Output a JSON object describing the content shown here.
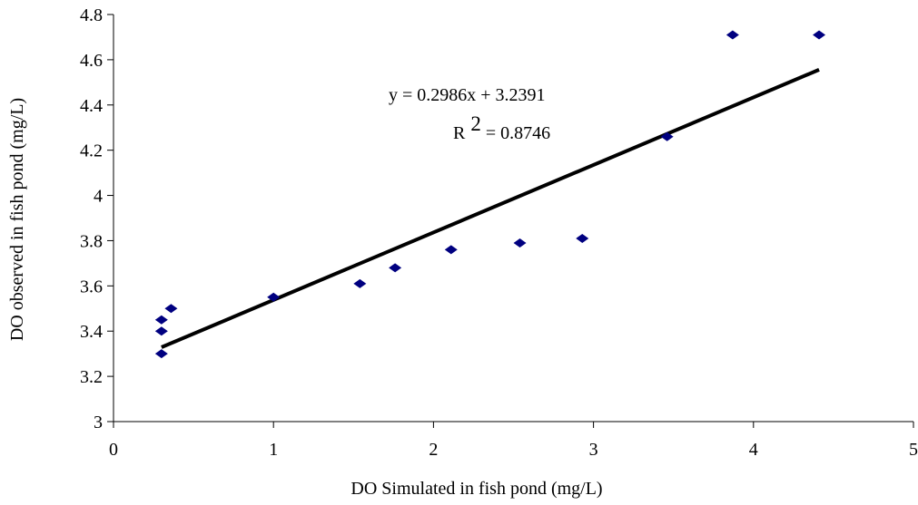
{
  "chart_data": {
    "type": "scatter",
    "xlabel": "DO Simulated in fish pond (mg/L)",
    "ylabel": "DO observed in fish pond (mg/L)",
    "xlim": [
      0,
      5
    ],
    "ylim": [
      3,
      4.8
    ],
    "x_ticks": [
      "0",
      "1",
      "2",
      "3",
      "4",
      "5"
    ],
    "y_ticks": [
      "3",
      "3.2",
      "3.4",
      "3.6",
      "3.8",
      "4",
      "4.2",
      "4.4",
      "4.6",
      "4.8"
    ],
    "grid": false,
    "marker_color": "#000080",
    "trendline_color": "#000000",
    "points": [
      {
        "x": 0.3,
        "y": 3.3
      },
      {
        "x": 0.3,
        "y": 3.4
      },
      {
        "x": 0.3,
        "y": 3.45
      },
      {
        "x": 0.36,
        "y": 3.5
      },
      {
        "x": 1.0,
        "y": 3.55
      },
      {
        "x": 1.54,
        "y": 3.61
      },
      {
        "x": 1.76,
        "y": 3.68
      },
      {
        "x": 2.11,
        "y": 3.76
      },
      {
        "x": 2.54,
        "y": 3.79
      },
      {
        "x": 2.93,
        "y": 3.81
      },
      {
        "x": 3.46,
        "y": 4.26
      },
      {
        "x": 3.87,
        "y": 4.71
      },
      {
        "x": 4.41,
        "y": 4.71
      }
    ],
    "trendline": {
      "slope": 0.2986,
      "intercept": 3.2391,
      "x_start": 0.3,
      "x_end": 4.41,
      "equation": "y = 0.2986x + 3.2391",
      "r2_prefix": "R",
      "r2_sup": "2",
      "r2_suffix": " = 0.8746"
    }
  }
}
